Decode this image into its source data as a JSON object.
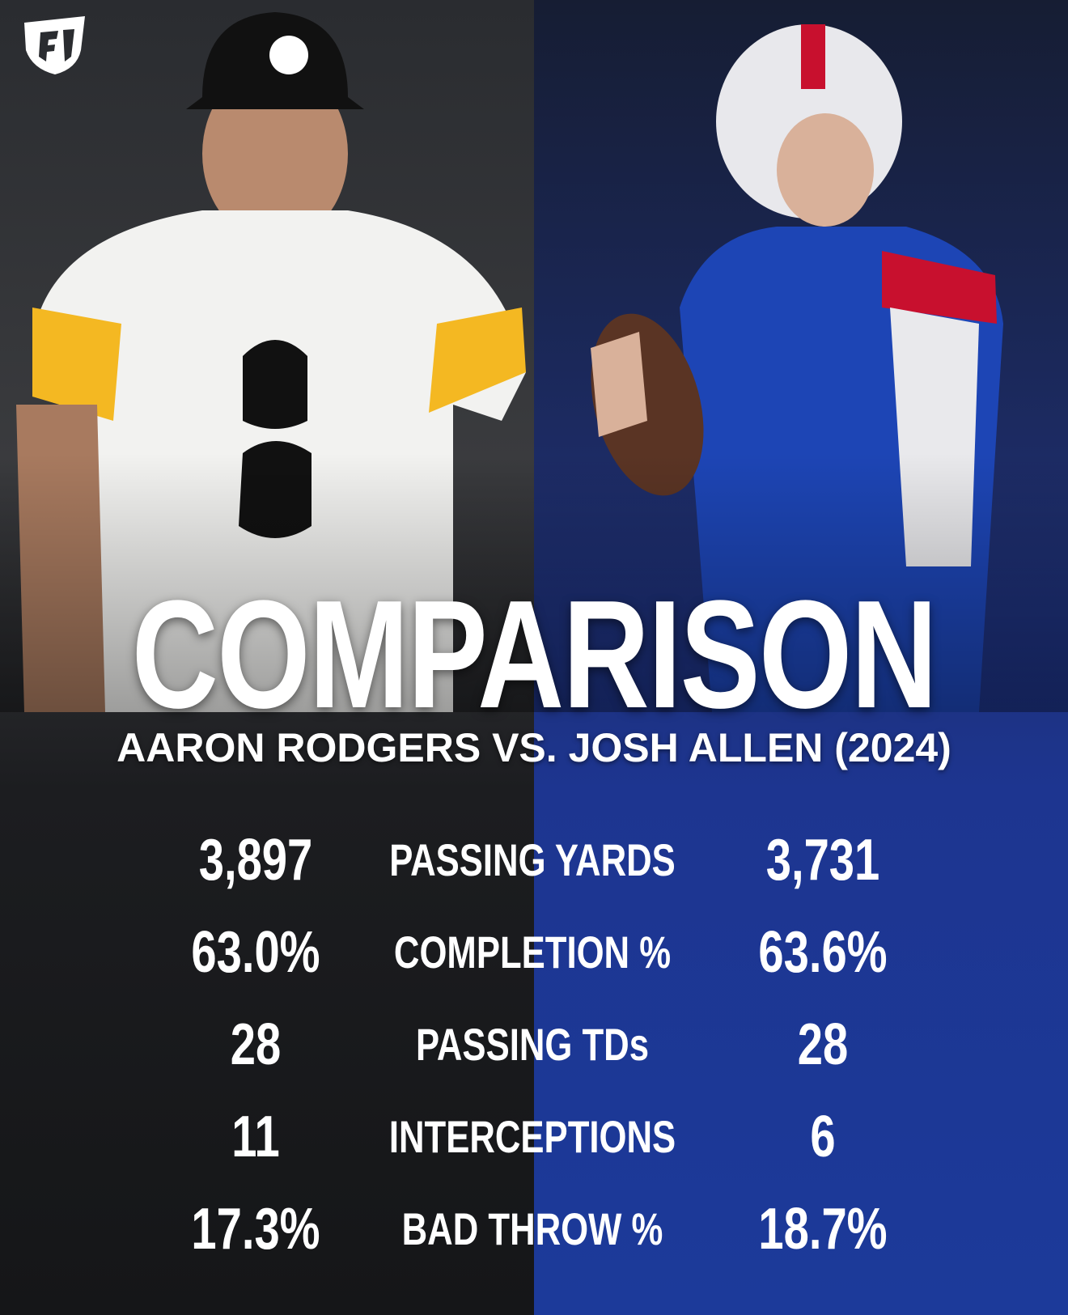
{
  "header": {
    "title": "COMPARISON",
    "subtitle": "AARON RODGERS VS. JOSH ALLEN (2024)"
  },
  "table": {
    "rows": [
      [
        "3,897",
        "PASSING YARDS",
        "3,731"
      ],
      [
        "63.0%",
        "COMPLETION %",
        "63.6%"
      ],
      [
        "28",
        "PASSING TDs",
        "28"
      ],
      [
        "11",
        "INTERCEPTIONS",
        "6"
      ],
      [
        "17.3%",
        "BAD THROW %",
        "18.7%"
      ]
    ]
  }
}
